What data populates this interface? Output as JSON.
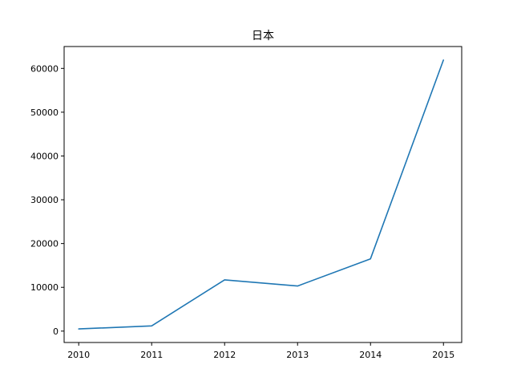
{
  "chart_data": {
    "type": "line",
    "title": "日本",
    "xlabel": "",
    "ylabel": "",
    "x": [
      2010,
      2011,
      2012,
      2013,
      2014,
      2015
    ],
    "xlim": [
      2009.8,
      2015.25
    ],
    "xticks": [
      "2010",
      "2011",
      "2012",
      "2013",
      "2014",
      "2015"
    ],
    "ylim": [
      -2600,
      65000
    ],
    "yticks": [
      "0",
      "10000",
      "20000",
      "30000",
      "40000",
      "50000",
      "60000"
    ],
    "grid": false,
    "series": [
      {
        "values": [
          500,
          1200,
          11700,
          10300,
          16500,
          61900
        ],
        "color": "#1f77b4"
      }
    ]
  }
}
